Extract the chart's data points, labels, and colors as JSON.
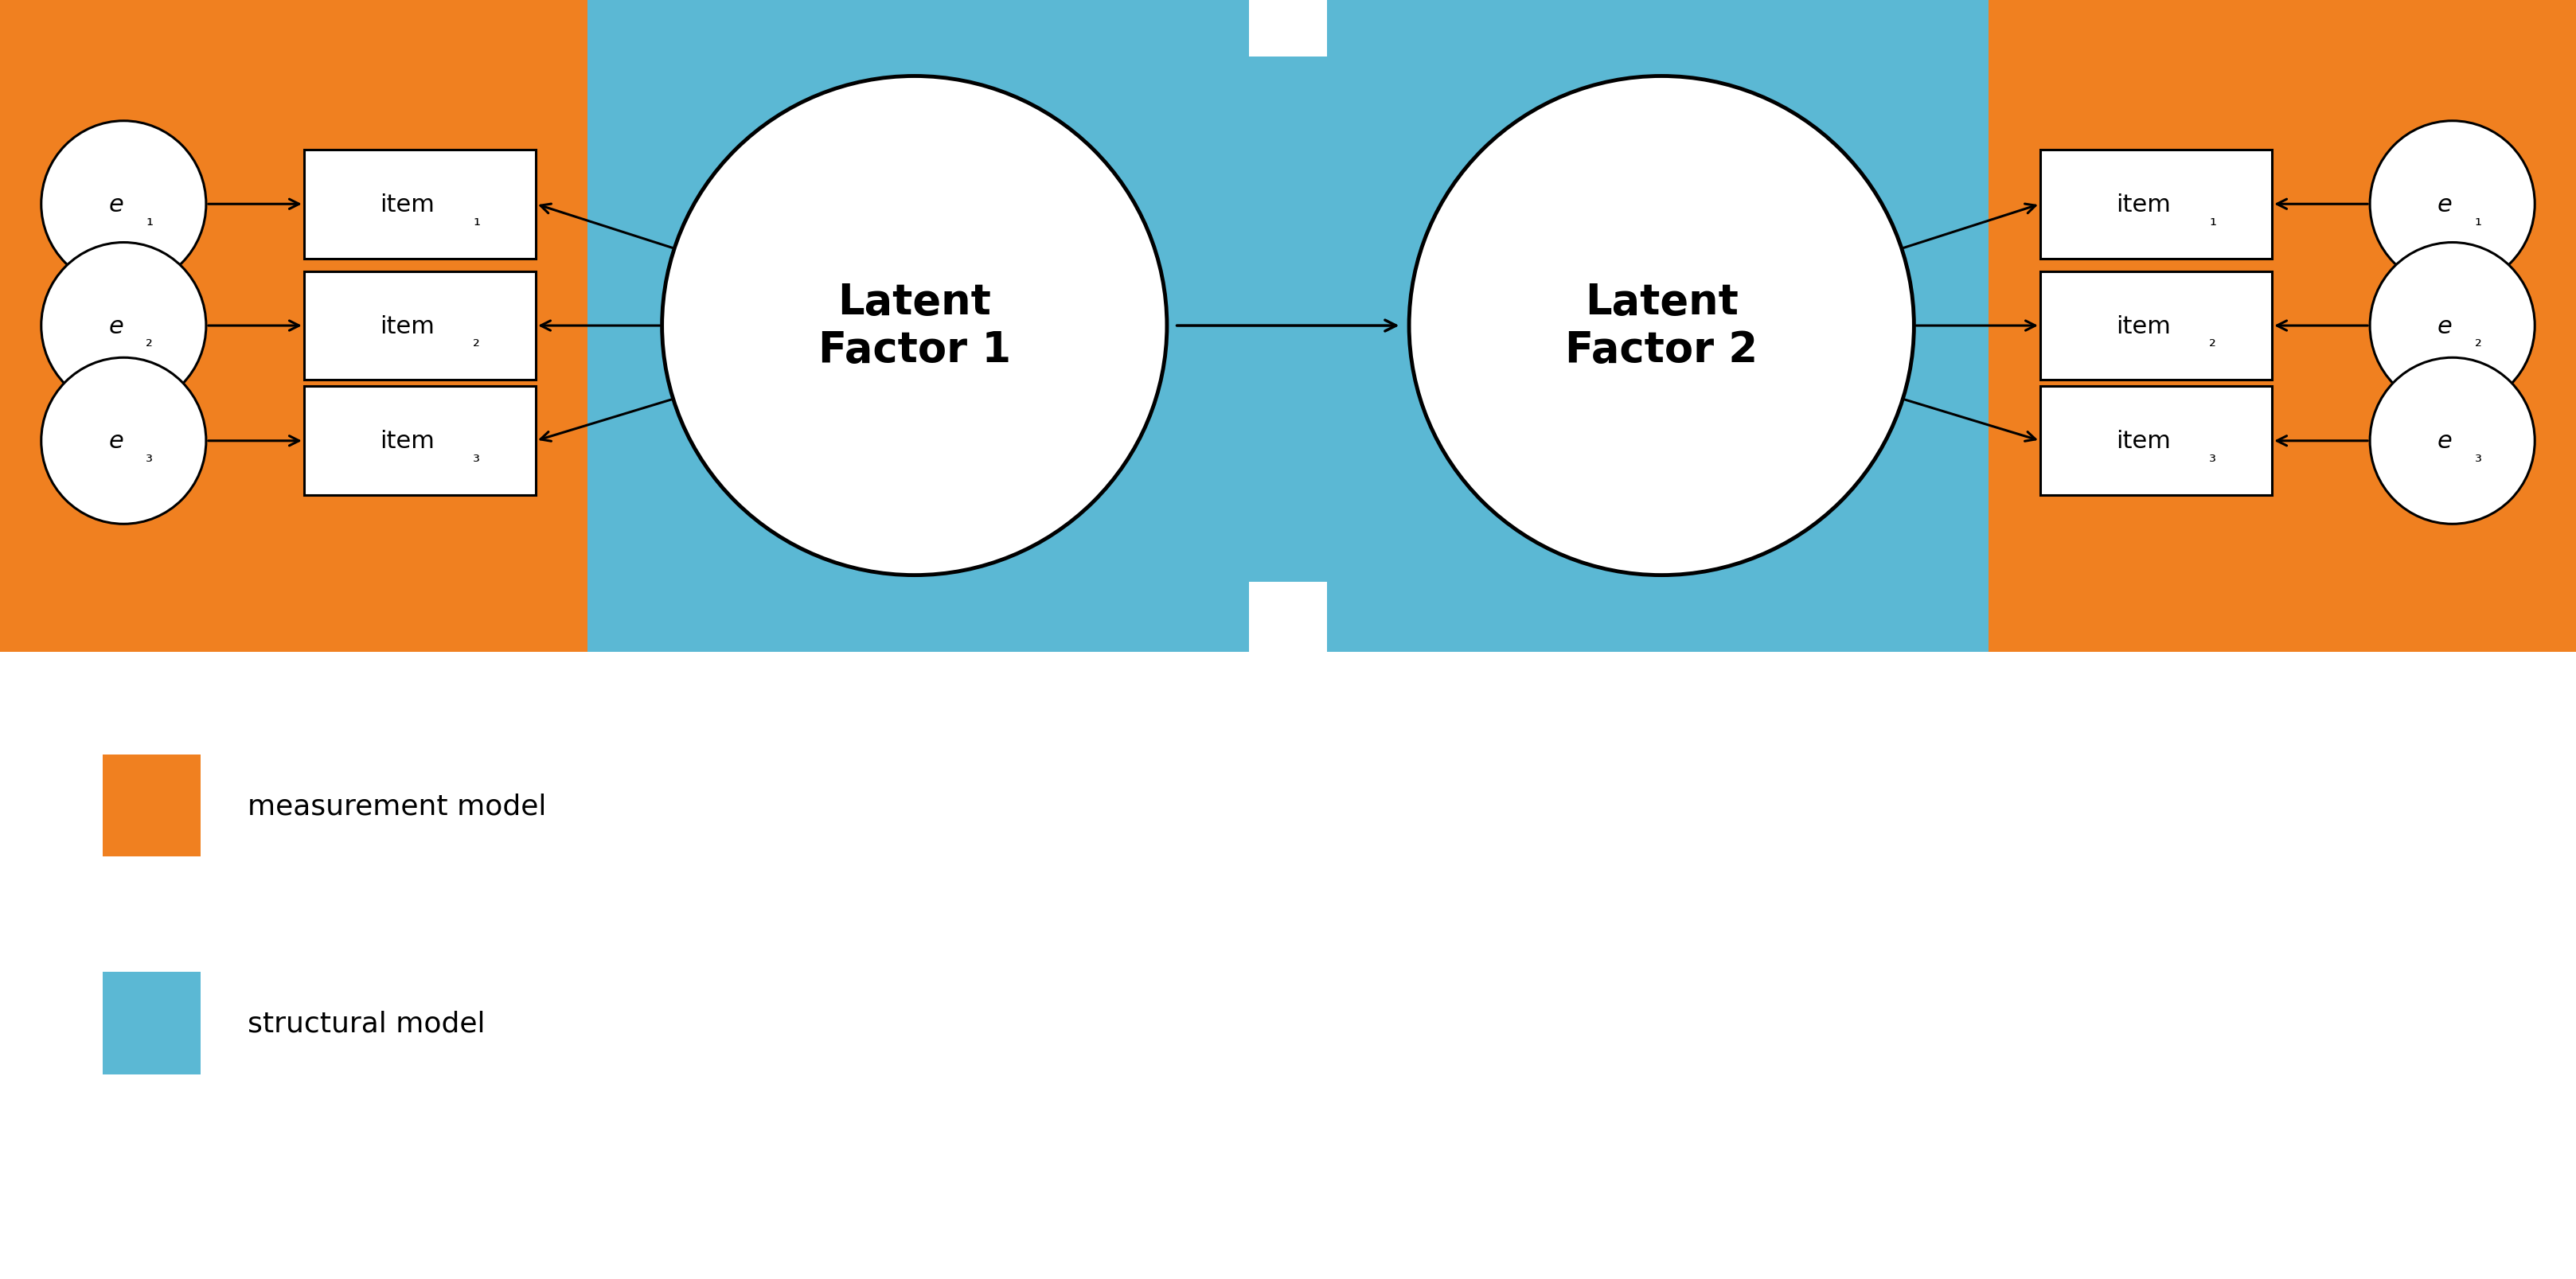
{
  "orange_color": "#F08020",
  "blue_color": "#5BB8D4",
  "white_color": "#FFFFFF",
  "black_color": "#000000",
  "bg_color": "#FFFFFF",
  "lf1_label": "Latent\nFactor 1",
  "lf2_label": "Latent\nFactor 2",
  "items_left": [
    "item",
    "item",
    "item"
  ],
  "items_left_sub": [
    "₁",
    "₂",
    "₃"
  ],
  "errors_left": [
    "e",
    "e",
    "e"
  ],
  "errors_left_sub": [
    "₁",
    "₂",
    "₃"
  ],
  "items_right": [
    "item",
    "item",
    "item"
  ],
  "items_right_sub": [
    "₁",
    "₂",
    "₃"
  ],
  "errors_right": [
    "e",
    "e",
    "e"
  ],
  "errors_right_sub": [
    "₁",
    "₂",
    "₃"
  ],
  "legend_orange_label": "measurement model",
  "legend_blue_label": "structural model",
  "font_size_latent": 38,
  "font_size_items": 22,
  "font_size_errors": 22,
  "font_size_sub": 16,
  "font_size_legend": 26
}
